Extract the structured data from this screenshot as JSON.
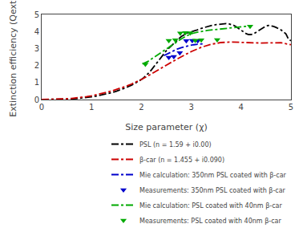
{
  "chart_data": {
    "type": "line",
    "xlabel": "Size parameter (χ)",
    "ylabel": "Extinction efficiency (Qext)",
    "xlim": [
      0,
      5
    ],
    "ylim": [
      0,
      5
    ],
    "xticks": [
      0,
      1,
      2,
      3,
      4,
      5
    ],
    "yticks": [
      0,
      1,
      2,
      3,
      4,
      5
    ],
    "grid": false,
    "legend": "lower right",
    "series": [
      {
        "name": "PSL (n = 1.59 + i0.00)",
        "type": "line",
        "line_style": "dashdot",
        "color": "#000000",
        "x": [
          0.0,
          0.1,
          0.2,
          0.3,
          0.4,
          0.5,
          0.6,
          0.7,
          0.8,
          0.9,
          1.0,
          1.1,
          1.2,
          1.3,
          1.4,
          1.5,
          1.6,
          1.7,
          1.8,
          1.9,
          2.0,
          2.05,
          2.1,
          2.15,
          2.2,
          2.25,
          2.3,
          2.35,
          2.4,
          2.45,
          2.5,
          2.55,
          2.6,
          2.65,
          2.7,
          2.75,
          2.8,
          2.85,
          2.9,
          2.95,
          3.0,
          3.1,
          3.2,
          3.3,
          3.4,
          3.5,
          3.6,
          3.65,
          3.7,
          3.75,
          3.8,
          3.85,
          3.9,
          3.95,
          4.0,
          4.05,
          4.1,
          4.15,
          4.2,
          4.25,
          4.3,
          4.35,
          4.4,
          4.45,
          4.5,
          4.55,
          4.6,
          4.65,
          4.7,
          4.75,
          4.8,
          4.85,
          4.9,
          4.95,
          5.0
        ],
        "values": [
          0.0,
          0.001,
          0.003,
          0.007,
          0.014,
          0.024,
          0.038,
          0.058,
          0.083,
          0.115,
          0.155,
          0.204,
          0.26,
          0.325,
          0.4,
          0.49,
          0.59,
          0.71,
          0.84,
          1.0,
          1.18,
          1.29,
          1.42,
          1.57,
          1.74,
          1.93,
          2.12,
          2.32,
          2.52,
          2.7,
          2.87,
          3.02,
          3.17,
          3.3,
          3.44,
          3.57,
          3.7,
          3.8,
          3.88,
          3.94,
          3.98,
          4.07,
          4.18,
          4.28,
          4.35,
          4.4,
          4.44,
          4.45,
          4.46,
          4.45,
          4.42,
          4.36,
          4.28,
          4.18,
          4.07,
          3.96,
          3.87,
          3.82,
          3.82,
          3.86,
          3.95,
          4.05,
          4.16,
          4.26,
          4.32,
          4.35,
          4.34,
          4.3,
          4.24,
          4.17,
          4.09,
          3.98,
          3.85,
          3.55,
          3.45
        ]
      },
      {
        "name": "β-car (n = 1.455 + i0.090)",
        "type": "line",
        "line_style": "dashdot",
        "color": "#cc0000",
        "x": [
          0.0,
          0.1,
          0.2,
          0.3,
          0.4,
          0.5,
          0.6,
          0.7,
          0.8,
          0.9,
          1.0,
          1.1,
          1.2,
          1.3,
          1.4,
          1.5,
          1.6,
          1.7,
          1.8,
          1.9,
          2.0,
          2.1,
          2.2,
          2.3,
          2.4,
          2.5,
          2.6,
          2.7,
          2.8,
          2.9,
          3.0,
          3.2,
          3.4,
          3.6,
          3.8,
          4.0,
          4.2,
          4.4,
          4.6,
          4.8,
          5.0
        ],
        "values": [
          0.0,
          0.002,
          0.006,
          0.014,
          0.026,
          0.044,
          0.067,
          0.096,
          0.131,
          0.172,
          0.22,
          0.28,
          0.345,
          0.42,
          0.5,
          0.59,
          0.69,
          0.79,
          0.91,
          1.04,
          1.18,
          1.34,
          1.5,
          1.67,
          1.84,
          2.02,
          2.19,
          2.36,
          2.52,
          2.67,
          2.82,
          3.07,
          3.25,
          3.35,
          3.38,
          3.36,
          3.33,
          3.32,
          3.33,
          3.34,
          3.22
        ]
      },
      {
        "name": "Mie calculation: 350nm PSL coated with β-car",
        "type": "line",
        "line_style": "dashdot",
        "color": "#0000cc",
        "x": [
          2.45,
          2.52,
          2.58,
          2.65,
          2.72,
          2.8,
          2.88,
          2.96,
          3.05,
          3.15,
          3.25
        ],
        "values": [
          2.58,
          2.68,
          2.78,
          2.88,
          2.97,
          3.05,
          3.12,
          3.17,
          3.22,
          3.26,
          3.28
        ]
      },
      {
        "name": "Measurements: 350nm PSL coated with β-car",
        "type": "scatter",
        "marker": "triangle-down",
        "color": "#0000cc",
        "x": [
          2.55,
          2.65,
          2.77,
          2.9,
          3.02,
          3.13
        ],
        "values": [
          2.48,
          2.52,
          2.75,
          3.45,
          3.47,
          3.46
        ]
      },
      {
        "name": "Mie calculation: PSL coated with 40nm β-car",
        "type": "line",
        "line_style": "dashdot",
        "color": "#00aa00",
        "x": [
          2.02,
          2.12,
          2.22,
          2.32,
          2.42,
          2.52,
          2.62,
          2.72,
          2.82,
          2.92,
          3.02,
          3.12,
          3.22,
          3.32,
          3.45,
          3.6,
          3.75,
          3.92,
          4.08,
          4.18
        ],
        "values": [
          2.09,
          2.22,
          2.42,
          2.62,
          2.82,
          3.02,
          3.22,
          3.42,
          3.6,
          3.76,
          3.88,
          3.96,
          4.02,
          4.06,
          4.1,
          4.15,
          4.2,
          4.26,
          4.3,
          4.3
        ]
      },
      {
        "name": "Measurements: PSL coated with 40nm β-car",
        "type": "scatter",
        "marker": "triangle-down",
        "color": "#00aa00",
        "x": [
          2.08,
          2.55,
          2.68,
          2.78,
          2.88,
          2.98,
          3.08,
          3.2,
          3.52,
          4.18
        ],
        "values": [
          2.08,
          3.47,
          3.5,
          3.9,
          3.93,
          3.92,
          3.48,
          3.5,
          3.52,
          4.3
        ]
      }
    ]
  }
}
